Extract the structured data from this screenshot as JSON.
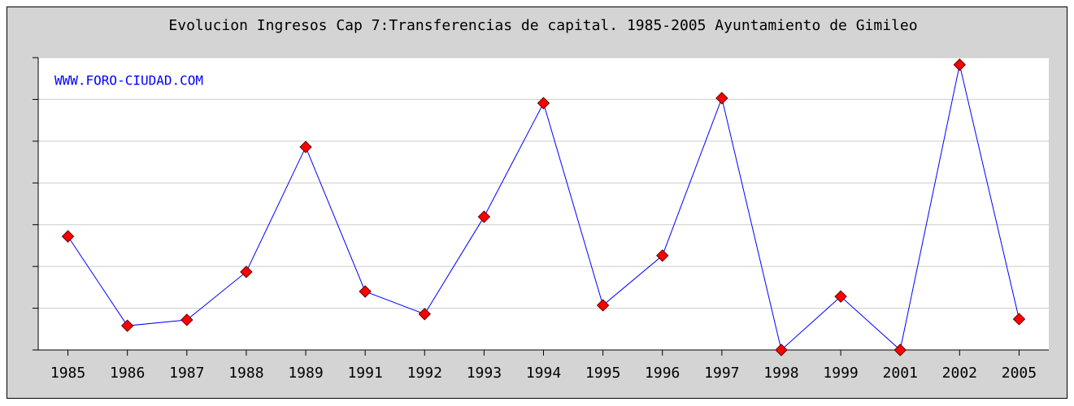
{
  "chart_data": {
    "type": "line",
    "title": "Evolucion Ingresos Cap 7:Transferencias de capital. 1985-2005 Ayuntamiento de Gimileo",
    "watermark": "WWW.FORO-CIUDAD.COM",
    "categories": [
      "1985",
      "1986",
      "1987",
      "1988",
      "1989",
      "1991",
      "1992",
      "1993",
      "1994",
      "1995",
      "1996",
      "1997",
      "1998",
      "1999",
      "2001",
      "2002",
      "2005"
    ],
    "series": [
      {
        "name": "Ingresos",
        "color": "#0000ff",
        "marker_color": "#ff0000",
        "values": [
          2.72,
          0.58,
          0.72,
          1.87,
          4.86,
          1.4,
          0.86,
          3.19,
          5.91,
          1.07,
          2.26,
          6.03,
          0,
          1.28,
          0,
          6.83,
          0.74
        ]
      }
    ],
    "ylim": [
      0,
      7
    ],
    "yticks": [
      0,
      1,
      2,
      3,
      4,
      5,
      6,
      7
    ],
    "grid": true
  }
}
